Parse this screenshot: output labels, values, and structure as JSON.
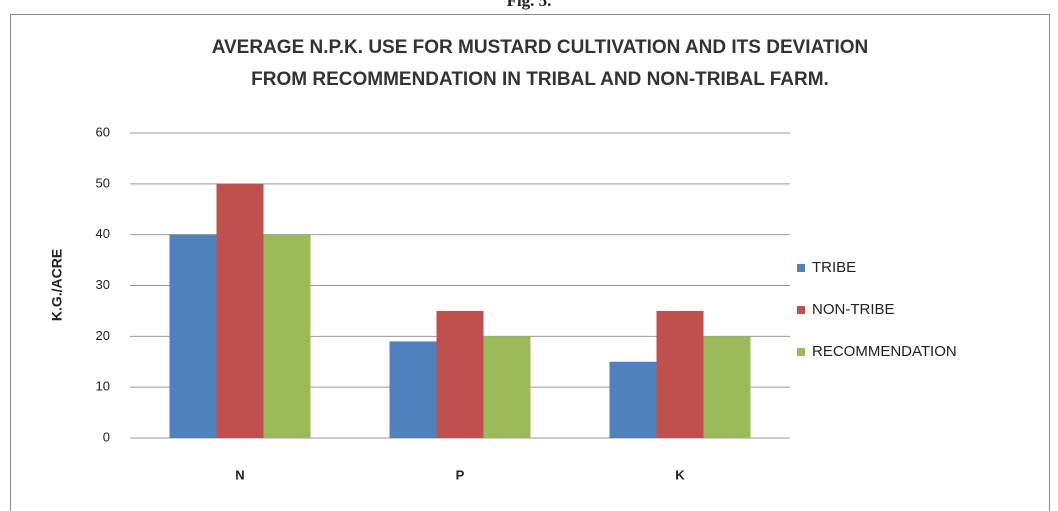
{
  "caption": "Fig. 5.",
  "chart_data": {
    "type": "bar",
    "title": [
      "AVERAGE N.P.K. USE FOR MUSTARD CULTIVATION AND ITS DEVIATION",
      "FROM RECOMMENDATION IN TRIBAL AND NON-TRIBAL FARM."
    ],
    "y_label": "K.G./ACRE",
    "categories": [
      "N",
      "P",
      "K"
    ],
    "series": [
      {
        "name": "TRIBE",
        "color": "#4f81bd",
        "values": [
          40,
          19,
          15
        ]
      },
      {
        "name": "NON-TRIBE",
        "color": "#c0504d",
        "values": [
          50,
          25,
          25
        ]
      },
      {
        "name": "RECOMMENDATION",
        "color": "#9bbb59",
        "values": [
          40,
          20,
          20
        ]
      }
    ],
    "ylim": [
      0,
      60
    ],
    "yticks": [
      0,
      10,
      20,
      30,
      40,
      50,
      60
    ],
    "grid": true,
    "legend": "right"
  }
}
